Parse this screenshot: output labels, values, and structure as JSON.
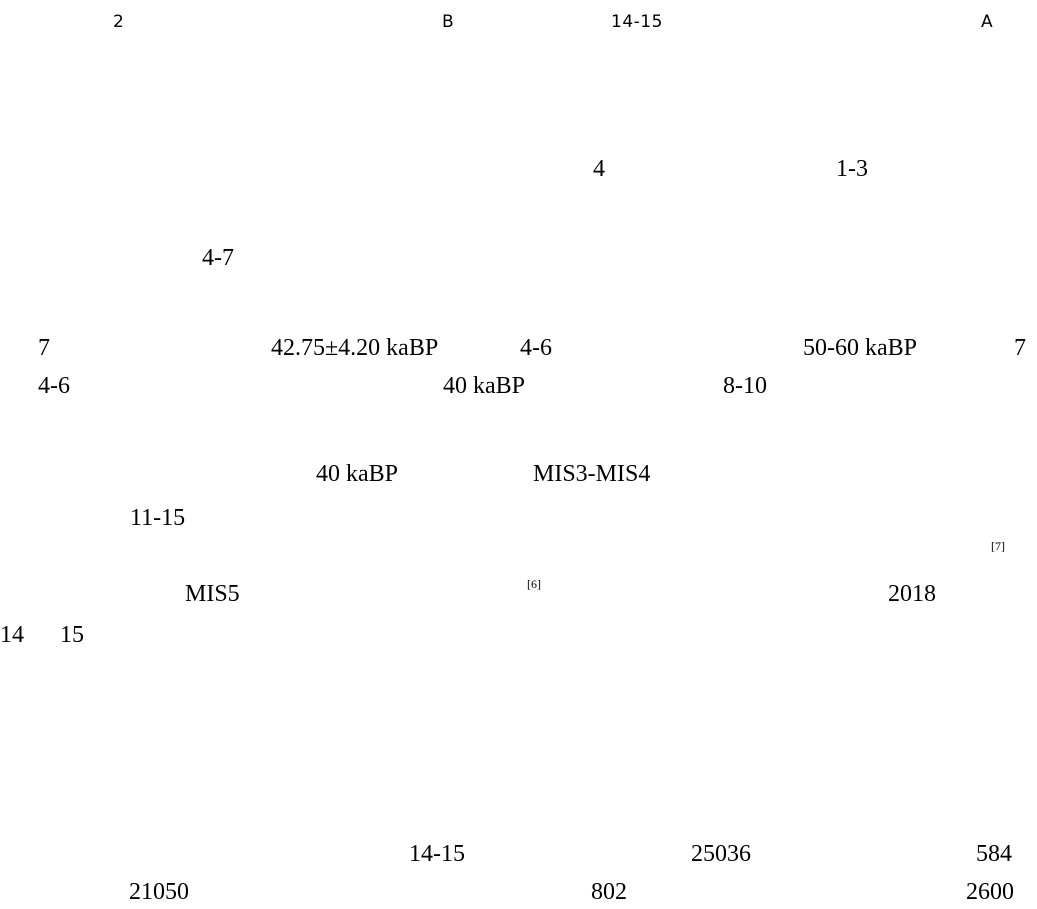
{
  "lines": {
    "line1": [
      "2",
      "B",
      "14-15",
      "A"
    ],
    "line2": [
      "4",
      "1-3"
    ],
    "line3": [
      "4-7"
    ],
    "line4": [
      "7",
      "42.75±4.20 kaBP",
      "4-6",
      "50-60 kaBP",
      "7"
    ],
    "line5": [
      "4-6",
      "40 kaBP",
      "8-10"
    ],
    "line6": [
      "40 kaBP",
      "MIS3-MIS4"
    ],
    "line7": [
      "11-15"
    ],
    "line8": [
      "[7]"
    ],
    "line9": [
      "MIS5",
      "[6]",
      "2018"
    ],
    "line10": [
      "14",
      "15"
    ],
    "line11": [
      "14-15",
      "25036",
      "584"
    ],
    "line12": [
      "21050",
      "802",
      "2600"
    ]
  }
}
